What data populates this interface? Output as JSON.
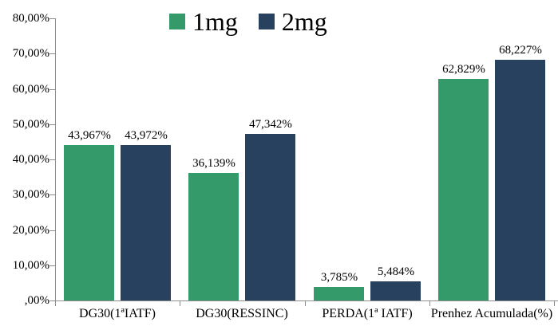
{
  "legend": {
    "items": [
      {
        "label": "1mg",
        "color": "#349a69"
      },
      {
        "label": "2mg",
        "color": "#27415e"
      }
    ]
  },
  "chart_data": {
    "type": "bar",
    "title": "",
    "xlabel": "",
    "ylabel": "",
    "categories": [
      "DG30(1ªIATF)",
      "DG30(RESSINC)",
      "PERDA(1ª IATF)",
      "Prenhez Acumulada(%)"
    ],
    "series": [
      {
        "name": "1mg",
        "color": "#349a69",
        "values": [
          43.967,
          36.139,
          3.785,
          62.829
        ],
        "value_labels": [
          "43,967%",
          "36,139%",
          "3,785%",
          "62,829%"
        ]
      },
      {
        "name": "2mg",
        "color": "#27415e",
        "values": [
          43.972,
          47.342,
          5.484,
          68.227
        ],
        "value_labels": [
          "43,972%",
          "47,342%",
          "5,484%",
          "68,227%"
        ]
      }
    ],
    "ylim": [
      0,
      80
    ],
    "ytick_step": 10,
    "ytick_labels": [
      ",00%",
      "10,00%",
      "20,00%",
      "30,00%",
      "40,00%",
      "50,00%",
      "60,00%",
      "70,00%",
      "80,00%"
    ],
    "grid": false,
    "legend_position": "top-center",
    "decimal_style": "comma"
  }
}
